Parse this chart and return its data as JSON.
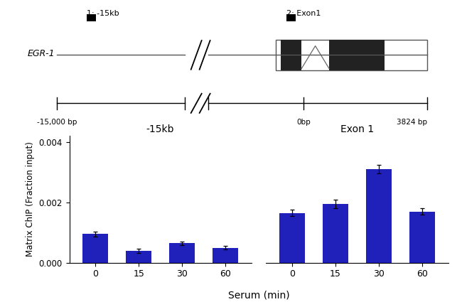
{
  "bar_color": "#2020BB",
  "neg15kb_values": [
    0.00095,
    0.0004,
    0.00065,
    0.0005
  ],
  "neg15kb_errors": [
    8e-05,
    7e-05,
    6e-05,
    5e-05
  ],
  "exon1_values": [
    0.00165,
    0.00195,
    0.0031,
    0.0017
  ],
  "exon1_errors": [
    0.0001,
    0.00015,
    0.00015,
    0.0001
  ],
  "time_labels": [
    "0",
    "15",
    "30",
    "60"
  ],
  "ylim": [
    0,
    0.0042
  ],
  "yticks": [
    0.0,
    0.002,
    0.004
  ],
  "ylabel": "Matrix ChIP (Fraction input)",
  "xlabel": "Serum (min)",
  "title_neg15kb": "-15kb",
  "title_exon1": "Exon 1",
  "gene_label": "EGR-1",
  "label1": "1: -15kb",
  "label2": "2: Exon1",
  "bp_left": "-15,000 bp",
  "bp_mid": "0bp",
  "bp_right": "3824 bp"
}
